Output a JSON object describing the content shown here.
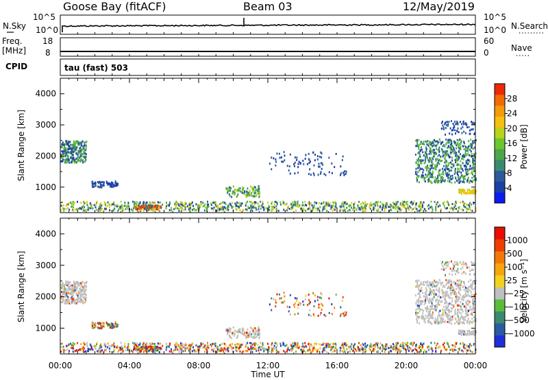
{
  "header": {
    "station": "Goose Bay (fitACF)",
    "beam": "Beam 03",
    "date": "12/May/2019"
  },
  "noise_panel": {
    "left_label": "N.Sky",
    "right_label": "N.Search",
    "left_ticks": [
      "10^5",
      "10^0"
    ],
    "right_ticks": [
      "10^5",
      "10^0"
    ]
  },
  "freq_panel": {
    "left_label_1": "Freq.",
    "left_label_2": "[MHz]",
    "right_label": "Nave",
    "left_ticks": [
      "18",
      "8"
    ],
    "right_ticks": [
      "60",
      "0"
    ]
  },
  "cpid": {
    "label": "CPID",
    "value": "tau (fast) 503"
  },
  "colors": {
    "power_scale": [
      "#0a1cf2",
      "#1d3fa8",
      "#2c5a9a",
      "#3b8a6e",
      "#4ca64a",
      "#6cc72e",
      "#b9d21c",
      "#f5c010",
      "#f59a0a",
      "#f26a06",
      "#ea2a04"
    ],
    "velocity_scale": [
      "#1f2fd8",
      "#2a5aa0",
      "#3b8a6e",
      "#5abd39",
      "#bfbfbf",
      "#f2d21e",
      "#f5a50d",
      "#f17907",
      "#ef3d05",
      "#e80e02"
    ]
  },
  "chart_data": [
    {
      "type": "heatmap",
      "title": "Power",
      "xlabel": "",
      "ylabel": "Slant Range [km]",
      "xlim": [
        "00:00",
        "24:00"
      ],
      "xticks": [
        "00:00",
        "04:00",
        "08:00",
        "12:00",
        "16:00",
        "20:00",
        "00:00"
      ],
      "ylim": [
        180,
        4500
      ],
      "yticks": [
        1000,
        2000,
        3000,
        4000
      ],
      "colorbar": {
        "label": "Power [dB]",
        "ticks": [
          "4",
          "8",
          "12",
          "16",
          "20",
          "24",
          "28"
        ],
        "range": [
          0,
          30
        ]
      },
      "features": [
        {
          "time_h": [
            0.0,
            1.5
          ],
          "range_km": [
            1750,
            2450
          ],
          "value_db": "6-12"
        },
        {
          "time_h": [
            1.8,
            3.3
          ],
          "range_km": [
            950,
            1150
          ],
          "value_db": "4-8"
        },
        {
          "time_h": [
            4.3,
            5.8
          ],
          "range_km": [
            250,
            380
          ],
          "value_db": "26-30"
        },
        {
          "time_h": [
            9.5,
            11.5
          ],
          "range_km": [
            650,
            1000
          ],
          "value_db": "8-16"
        },
        {
          "time_h": [
            12.0,
            16.5
          ],
          "range_km": [
            1350,
            2100
          ],
          "value_db": "4-8"
        },
        {
          "time_h": [
            20.5,
            24.0
          ],
          "range_km": [
            1100,
            2500
          ],
          "value_db": "4-14"
        },
        {
          "time_h": [
            22.0,
            24.0
          ],
          "range_km": [
            2650,
            3100
          ],
          "value_db": "4-8"
        },
        {
          "time_h": [
            23.0,
            24.0
          ],
          "range_km": [
            750,
            900
          ],
          "value_db": "16-20"
        }
      ]
    },
    {
      "type": "heatmap",
      "title": "Velocity",
      "xlabel": "Time UT",
      "ylabel": "Slant Range [km]",
      "xlim": [
        "00:00",
        "24:00"
      ],
      "xticks": [
        "00:00",
        "04:00",
        "08:00",
        "12:00",
        "16:00",
        "20:00",
        "00:00"
      ],
      "ylim": [
        180,
        4500
      ],
      "yticks": [
        1000,
        2000,
        3000,
        4000
      ],
      "colorbar": {
        "label": "Velocity [m s⁻¹]",
        "ticks": [
          "1000",
          "500",
          "100",
          "25",
          "−25",
          "−100",
          "−500",
          "−1000"
        ]
      },
      "features": [
        {
          "time_h": [
            0.0,
            1.5
          ],
          "range_km": [
            1750,
            2450
          ],
          "value_ms": "-25 to 25"
        },
        {
          "time_h": [
            9.5,
            11.5
          ],
          "range_km": [
            650,
            1000
          ],
          "value_ms": "-25 to 25"
        },
        {
          "time_h": [
            20.5,
            24.0
          ],
          "range_km": [
            1100,
            2500
          ],
          "value_ms": "-25 to 25"
        },
        {
          "time_h": [
            0.0,
            24.0
          ],
          "range_km": [
            180,
            500
          ],
          "value_ms": "mixed"
        }
      ]
    }
  ]
}
